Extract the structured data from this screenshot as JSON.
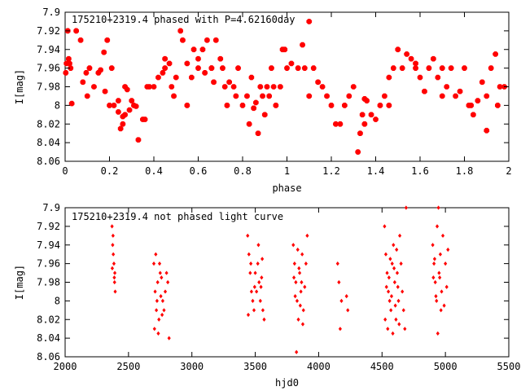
{
  "chart_data": [
    {
      "type": "scatter",
      "title": "175210+2319.4 phased with P=4.62160day",
      "xlabel": "phase",
      "ylabel": "I[mag]",
      "xlim": [
        0,
        2
      ],
      "ylim": [
        8.06,
        7.9
      ],
      "y_inverted": true,
      "xticks": [
        "0",
        "0.2",
        "0.4",
        "0.6",
        "0.8",
        "1",
        "1.2",
        "1.4",
        "1.6",
        "1.8",
        "2"
      ],
      "yticks": [
        "7.9",
        "7.92",
        "7.94",
        "7.96",
        "7.98",
        "8",
        "8.02",
        "8.04",
        "8.06"
      ],
      "marker": "star",
      "color": "#ff0000",
      "grid": false,
      "points": [
        [
          0.003,
          7.965
        ],
        [
          0.006,
          7.955
        ],
        [
          0.012,
          7.92
        ],
        [
          0.016,
          7.95
        ],
        [
          0.02,
          7.955
        ],
        [
          0.025,
          7.96
        ],
        [
          0.03,
          7.998
        ],
        [
          0.05,
          7.92
        ],
        [
          0.07,
          7.93
        ],
        [
          0.08,
          7.975
        ],
        [
          0.095,
          7.965
        ],
        [
          0.1,
          7.99
        ],
        [
          0.11,
          7.96
        ],
        [
          0.13,
          7.98
        ],
        [
          0.15,
          7.965
        ],
        [
          0.16,
          7.962
        ],
        [
          0.175,
          7.943
        ],
        [
          0.18,
          7.985
        ],
        [
          0.19,
          7.93
        ],
        [
          0.2,
          8.0
        ],
        [
          0.21,
          7.96
        ],
        [
          0.22,
          8.0
        ],
        [
          0.24,
          7.995
        ],
        [
          0.24,
          8.007
        ],
        [
          0.25,
          8.025
        ],
        [
          0.26,
          8.02
        ],
        [
          0.26,
          8.012
        ],
        [
          0.27,
          7.98
        ],
        [
          0.27,
          8.01
        ],
        [
          0.28,
          7.983
        ],
        [
          0.29,
          8.005
        ],
        [
          0.3,
          7.995
        ],
        [
          0.31,
          8.0
        ],
        [
          0.32,
          8.001
        ],
        [
          0.33,
          8.037
        ],
        [
          0.35,
          8.015
        ],
        [
          0.36,
          8.015
        ],
        [
          0.37,
          7.98
        ],
        [
          0.38,
          7.98
        ],
        [
          0.4,
          7.98
        ],
        [
          0.42,
          7.97
        ],
        [
          0.44,
          7.965
        ],
        [
          0.45,
          7.96
        ],
        [
          0.45,
          7.95
        ],
        [
          0.47,
          7.955
        ],
        [
          0.48,
          7.98
        ],
        [
          0.49,
          7.99
        ],
        [
          0.5,
          7.97
        ],
        [
          0.52,
          7.92
        ],
        [
          0.53,
          7.93
        ],
        [
          0.55,
          7.955
        ],
        [
          0.57,
          7.97
        ],
        [
          0.58,
          7.94
        ],
        [
          0.6,
          7.95
        ],
        [
          0.6,
          7.96
        ],
        [
          0.62,
          7.94
        ],
        [
          0.63,
          7.965
        ],
        [
          0.64,
          7.93
        ],
        [
          0.66,
          7.96
        ],
        [
          0.67,
          7.975
        ],
        [
          0.68,
          7.93
        ],
        [
          0.7,
          7.95
        ],
        [
          0.71,
          7.96
        ],
        [
          0.72,
          7.98
        ],
        [
          0.73,
          8.0
        ],
        [
          0.74,
          7.975
        ],
        [
          0.76,
          7.98
        ],
        [
          0.78,
          7.96
        ],
        [
          0.8,
          8.0
        ],
        [
          0.82,
          7.99
        ],
        [
          0.83,
          8.02
        ],
        [
          0.84,
          7.97
        ],
        [
          0.85,
          8.003
        ],
        [
          0.86,
          7.997
        ],
        [
          0.87,
          8.03
        ],
        [
          0.88,
          7.98
        ],
        [
          0.89,
          7.99
        ],
        [
          0.9,
          8.01
        ],
        [
          0.91,
          7.98
        ],
        [
          0.92,
          7.99
        ],
        [
          0.93,
          7.96
        ],
        [
          0.94,
          7.98
        ],
        [
          0.95,
          8.0
        ],
        [
          0.97,
          7.98
        ],
        [
          0.99,
          7.94
        ],
        [
          1.0,
          7.96
        ],
        [
          1.02,
          7.955
        ],
        [
          1.05,
          7.96
        ],
        [
          1.07,
          7.935
        ],
        [
          1.08,
          7.96
        ],
        [
          1.1,
          7.99
        ],
        [
          1.12,
          7.96
        ],
        [
          1.14,
          7.975
        ],
        [
          1.16,
          7.98
        ],
        [
          1.18,
          7.99
        ],
        [
          1.2,
          8.0
        ],
        [
          1.22,
          8.02
        ],
        [
          1.24,
          8.02
        ],
        [
          1.26,
          8.0
        ],
        [
          1.28,
          7.99
        ],
        [
          1.3,
          7.98
        ],
        [
          1.32,
          8.05
        ],
        [
          1.33,
          8.03
        ],
        [
          1.34,
          8.01
        ],
        [
          1.36,
          7.995
        ],
        [
          1.38,
          8.01
        ],
        [
          1.4,
          8.015
        ],
        [
          1.42,
          8.0
        ],
        [
          1.44,
          7.99
        ],
        [
          1.46,
          7.97
        ],
        [
          1.48,
          7.96
        ],
        [
          1.5,
          7.94
        ],
        [
          1.52,
          7.96
        ],
        [
          1.54,
          7.945
        ],
        [
          1.56,
          7.95
        ],
        [
          1.58,
          7.955
        ],
        [
          1.6,
          7.97
        ],
        [
          1.62,
          7.985
        ],
        [
          1.64,
          7.96
        ],
        [
          1.66,
          7.95
        ],
        [
          1.68,
          7.97
        ],
        [
          1.7,
          7.99
        ],
        [
          1.72,
          7.98
        ],
        [
          1.74,
          7.96
        ],
        [
          1.76,
          7.99
        ],
        [
          1.78,
          7.985
        ],
        [
          1.8,
          7.96
        ],
        [
          1.82,
          8.0
        ],
        [
          1.84,
          8.01
        ],
        [
          1.86,
          7.995
        ],
        [
          1.88,
          7.975
        ],
        [
          1.9,
          7.99
        ],
        [
          1.92,
          7.96
        ],
        [
          1.94,
          7.945
        ],
        [
          1.96,
          7.98
        ],
        [
          1.98,
          7.98
        ],
        [
          1.6,
          7.898
        ],
        [
          1.35,
          8.02
        ],
        [
          1.9,
          8.027
        ],
        [
          1.35,
          7.993
        ],
        [
          1.1,
          7.91
        ],
        [
          0.98,
          7.94
        ],
        [
          0.55,
          8.0
        ],
        [
          0.66,
          7.96
        ],
        [
          0.77,
          7.99
        ],
        [
          1.46,
          8.0
        ],
        [
          1.58,
          7.96
        ],
        [
          1.7,
          7.96
        ],
        [
          1.83,
          8.0
        ],
        [
          1.95,
          8.0
        ]
      ]
    },
    {
      "type": "scatter",
      "title": "175210+2319.4 not phased light curve",
      "xlabel": "hjd0",
      "ylabel": "I[mag]",
      "xlim": [
        2000,
        5500
      ],
      "ylim": [
        8.06,
        7.9
      ],
      "y_inverted": true,
      "xticks": [
        "2000",
        "2500",
        "3000",
        "3500",
        "4000",
        "4500",
        "5000",
        "5500"
      ],
      "yticks": [
        "7.9",
        "7.92",
        "7.94",
        "7.96",
        "7.98",
        "8",
        "8.02",
        "8.04",
        "8.06"
      ],
      "marker": "diamond",
      "color": "#ff0000",
      "grid": false,
      "points": [
        [
          2370,
          7.92
        ],
        [
          2375,
          7.94
        ],
        [
          2380,
          7.95
        ],
        [
          2385,
          7.96
        ],
        [
          2390,
          7.98
        ],
        [
          2395,
          7.99
        ],
        [
          2372,
          7.965
        ],
        [
          2378,
          7.93
        ],
        [
          2388,
          7.975
        ],
        [
          2392,
          7.97
        ],
        [
          2700,
          7.96
        ],
        [
          2710,
          7.99
        ],
        [
          2720,
          8.01
        ],
        [
          2730,
          7.98
        ],
        [
          2740,
          8.02
        ],
        [
          2750,
          7.97
        ],
        [
          2760,
          7.975
        ],
        [
          2770,
          8.0
        ],
        [
          2780,
          8.01
        ],
        [
          2790,
          7.99
        ],
        [
          2800,
          7.97
        ],
        [
          2810,
          7.98
        ],
        [
          2820,
          8.04
        ],
        [
          2705,
          8.03
        ],
        [
          2715,
          7.95
        ],
        [
          2725,
          8.0
        ],
        [
          2735,
          8.035
        ],
        [
          2745,
          7.96
        ],
        [
          2755,
          7.995
        ],
        [
          2765,
          8.015
        ],
        [
          3440,
          7.93
        ],
        [
          3450,
          7.95
        ],
        [
          3460,
          7.97
        ],
        [
          3470,
          7.99
        ],
        [
          3480,
          8.0
        ],
        [
          3490,
          8.01
        ],
        [
          3500,
          7.97
        ],
        [
          3510,
          7.99
        ],
        [
          3520,
          7.96
        ],
        [
          3530,
          7.98
        ],
        [
          3540,
          8.0
        ],
        [
          3550,
          7.975
        ],
        [
          3560,
          8.01
        ],
        [
          3570,
          8.02
        ],
        [
          3445,
          8.015
        ],
        [
          3465,
          7.96
        ],
        [
          3495,
          7.985
        ],
        [
          3525,
          7.94
        ],
        [
          3545,
          7.985
        ],
        [
          3555,
          7.955
        ],
        [
          3800,
          7.94
        ],
        [
          3810,
          7.96
        ],
        [
          3820,
          7.98
        ],
        [
          3830,
          8.0
        ],
        [
          3840,
          8.02
        ],
        [
          3850,
          7.97
        ],
        [
          3860,
          7.99
        ],
        [
          3870,
          7.95
        ],
        [
          3880,
          8.01
        ],
        [
          3890,
          7.985
        ],
        [
          3900,
          7.96
        ],
        [
          3910,
          7.93
        ],
        [
          3805,
          7.975
        ],
        [
          3815,
          7.995
        ],
        [
          3825,
          8.055
        ],
        [
          3835,
          7.945
        ],
        [
          3845,
          7.965
        ],
        [
          3855,
          8.005
        ],
        [
          3865,
          7.98
        ],
        [
          3875,
          8.025
        ],
        [
          4150,
          7.96
        ],
        [
          4160,
          7.98
        ],
        [
          4170,
          8.03
        ],
        [
          4180,
          8.0
        ],
        [
          4220,
          7.995
        ],
        [
          4230,
          8.01
        ],
        [
          4520,
          7.92
        ],
        [
          4530,
          7.95
        ],
        [
          4540,
          7.97
        ],
        [
          4550,
          7.99
        ],
        [
          4560,
          8.0
        ],
        [
          4570,
          8.01
        ],
        [
          4580,
          7.96
        ],
        [
          4590,
          7.94
        ],
        [
          4600,
          7.98
        ],
        [
          4610,
          8.02
        ],
        [
          4620,
          7.97
        ],
        [
          4630,
          8.0
        ],
        [
          4640,
          7.93
        ],
        [
          4650,
          7.96
        ],
        [
          4660,
          7.99
        ],
        [
          4670,
          8.01
        ],
        [
          4680,
          8.03
        ],
        [
          4690,
          7.9
        ],
        [
          4525,
          8.02
        ],
        [
          4535,
          7.985
        ],
        [
          4545,
          8.03
        ],
        [
          4555,
          7.975
        ],
        [
          4565,
          7.955
        ],
        [
          4575,
          7.995
        ],
        [
          4585,
          8.035
        ],
        [
          4595,
          7.965
        ],
        [
          4605,
          8.005
        ],
        [
          4615,
          7.945
        ],
        [
          4625,
          7.985
        ],
        [
          4635,
          8.025
        ],
        [
          4900,
          7.94
        ],
        [
          4910,
          7.96
        ],
        [
          4920,
          7.98
        ],
        [
          4930,
          8.0
        ],
        [
          4940,
          8.035
        ],
        [
          4950,
          7.97
        ],
        [
          4960,
          7.95
        ],
        [
          4970,
          7.99
        ],
        [
          4980,
          7.93
        ],
        [
          4990,
          8.005
        ],
        [
          5000,
          7.96
        ],
        [
          5010,
          7.985
        ],
        [
          5020,
          7.945
        ],
        [
          4905,
          7.975
        ],
        [
          4915,
          7.955
        ],
        [
          4925,
          7.995
        ],
        [
          4935,
          7.92
        ],
        [
          4945,
          7.9
        ],
        [
          4955,
          7.975
        ],
        [
          4965,
          8.01
        ]
      ]
    }
  ]
}
